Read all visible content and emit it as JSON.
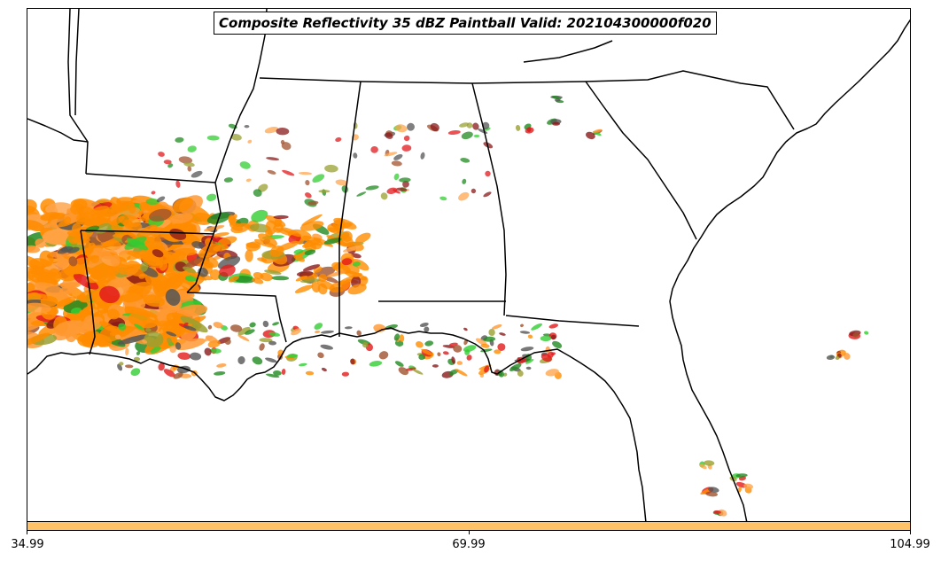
{
  "title": "Composite Reflectivity 35 dBZ Paintball Valid: 202104300000f020",
  "colorbar": {
    "color": "#ffc266",
    "tick_labels": [
      "34.99",
      "69.99",
      "104.99"
    ]
  },
  "colors": {
    "member_colors": [
      "#ff8c00",
      "#ff9933",
      "#e31a1c",
      "#8b1a1a",
      "#228b22",
      "#32cd32",
      "#9aa030",
      "#a0522d",
      "#ffa64d",
      "#555555"
    ]
  },
  "icons": {
    "state_borders": "black-outline",
    "coastline": "black-outline"
  }
}
